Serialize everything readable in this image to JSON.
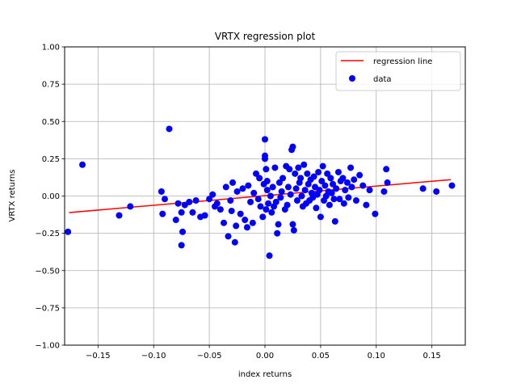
{
  "chart_data": {
    "type": "scatter",
    "title": "VRTX regression plot",
    "xlabel": "index returns",
    "ylabel": "VRTX returns",
    "xlim": [
      -0.18,
      0.18
    ],
    "ylim": [
      -1.0,
      1.0
    ],
    "x_ticks": [
      -0.15,
      -0.1,
      -0.05,
      0.0,
      0.05,
      0.1,
      0.15
    ],
    "x_tick_labels": [
      "−0.15",
      "−0.10",
      "−0.05",
      "0.00",
      "0.05",
      "0.10",
      "0.15"
    ],
    "y_ticks": [
      -1.0,
      -0.75,
      -0.5,
      -0.25,
      0.0,
      0.25,
      0.5,
      0.75,
      1.0
    ],
    "y_tick_labels": [
      "−1.00",
      "−0.75",
      "−0.50",
      "−0.25",
      "0.00",
      "0.25",
      "0.50",
      "0.75",
      "1.00"
    ],
    "grid": true,
    "legend_position": "top-right",
    "colors": {
      "regression": "#ff0000",
      "data": "#0000ff"
    },
    "series": [
      {
        "name": "regression line",
        "kind": "line",
        "points": [
          [
            -0.176,
            -0.111
          ],
          [
            0.167,
            0.11
          ]
        ]
      },
      {
        "name": "data",
        "kind": "scatter",
        "points": [
          [
            -0.177,
            -0.24
          ],
          [
            -0.164,
            0.21
          ],
          [
            -0.131,
            -0.13
          ],
          [
            -0.121,
            -0.07
          ],
          [
            -0.093,
            0.03
          ],
          [
            -0.09,
            -0.02
          ],
          [
            -0.092,
            -0.12
          ],
          [
            -0.086,
            0.45
          ],
          [
            -0.08,
            -0.16
          ],
          [
            -0.078,
            -0.05
          ],
          [
            -0.075,
            -0.11
          ],
          [
            -0.075,
            -0.33
          ],
          [
            -0.074,
            -0.24
          ],
          [
            -0.072,
            -0.06
          ],
          [
            -0.068,
            -0.04
          ],
          [
            -0.065,
            -0.11
          ],
          [
            -0.062,
            -0.03
          ],
          [
            -0.058,
            -0.14
          ],
          [
            -0.054,
            -0.13
          ],
          [
            -0.05,
            -0.02
          ],
          [
            -0.047,
            0.01
          ],
          [
            -0.045,
            -0.07
          ],
          [
            -0.043,
            -0.05
          ],
          [
            -0.04,
            -0.09
          ],
          [
            -0.037,
            -0.18
          ],
          [
            -0.035,
            0.06
          ],
          [
            -0.033,
            -0.27
          ],
          [
            -0.031,
            -0.03
          ],
          [
            -0.03,
            -0.1
          ],
          [
            -0.029,
            0.09
          ],
          [
            -0.027,
            -0.31
          ],
          [
            -0.026,
            -0.2
          ],
          [
            -0.025,
            0.03
          ],
          [
            -0.022,
            -0.12
          ],
          [
            -0.02,
            0.05
          ],
          [
            -0.018,
            -0.16
          ],
          [
            -0.016,
            -0.21
          ],
          [
            -0.015,
            0.07
          ],
          [
            -0.013,
            -0.04
          ],
          [
            -0.011,
            -0.18
          ],
          [
            -0.01,
            0.02
          ],
          [
            -0.008,
            0.15
          ],
          [
            -0.006,
            -0.02
          ],
          [
            -0.005,
            0.12
          ],
          [
            -0.004,
            -0.07
          ],
          [
            -0.002,
            -0.14
          ],
          [
            -0.001,
            0.08
          ],
          [
            0.0,
            0.38
          ],
          [
            0.0,
            0.27
          ],
          [
            0.0,
            0.25
          ],
          [
            0.001,
            0.18
          ],
          [
            0.001,
            -0.09
          ],
          [
            0.002,
            0.1
          ],
          [
            0.002,
            0.04
          ],
          [
            0.003,
            -0.05
          ],
          [
            0.004,
            -0.4
          ],
          [
            0.005,
            0.0
          ],
          [
            0.006,
            -0.11
          ],
          [
            0.007,
            0.06
          ],
          [
            0.008,
            -0.07
          ],
          [
            0.009,
            0.19
          ],
          [
            0.01,
            -0.04
          ],
          [
            0.011,
            -0.25
          ],
          [
            0.012,
            -0.19
          ],
          [
            0.013,
            0.09
          ],
          [
            0.014,
            -0.01
          ],
          [
            0.015,
            0.03
          ],
          [
            0.016,
            0.12
          ],
          [
            0.018,
            -0.09
          ],
          [
            0.019,
            0.2
          ],
          [
            0.02,
            -0.06
          ],
          [
            0.021,
            0.06
          ],
          [
            0.022,
            0.18
          ],
          [
            0.023,
            0.01
          ],
          [
            0.024,
            0.31
          ],
          [
            0.025,
            0.33
          ],
          [
            0.025,
            -0.19
          ],
          [
            0.026,
            -0.23
          ],
          [
            0.027,
            0.15
          ],
          [
            0.028,
            0.05
          ],
          [
            0.029,
            -0.03
          ],
          [
            0.03,
            0.19
          ],
          [
            0.031,
            0.09
          ],
          [
            0.032,
            0.12
          ],
          [
            0.033,
            0.0
          ],
          [
            0.034,
            -0.07
          ],
          [
            0.035,
            0.21
          ],
          [
            0.036,
            0.04
          ],
          [
            0.037,
            -0.05
          ],
          [
            0.038,
            0.15
          ],
          [
            0.039,
            0.08
          ],
          [
            0.04,
            -0.03
          ],
          [
            0.041,
            0.11
          ],
          [
            0.042,
            0.02
          ],
          [
            0.043,
            -0.01
          ],
          [
            0.044,
            0.13
          ],
          [
            0.045,
            0.06
          ],
          [
            0.046,
            -0.08
          ],
          [
            0.047,
            0.01
          ],
          [
            0.048,
            0.16
          ],
          [
            0.049,
            0.04
          ],
          [
            0.05,
            -0.14
          ],
          [
            0.051,
            0.1
          ],
          [
            0.052,
            0.2
          ],
          [
            0.053,
            -0.03
          ],
          [
            0.054,
            0.07
          ],
          [
            0.055,
            0.0
          ],
          [
            0.056,
            0.15
          ],
          [
            0.057,
            0.03
          ],
          [
            0.058,
            -0.06
          ],
          [
            0.059,
            0.12
          ],
          [
            0.06,
            0.02
          ],
          [
            0.061,
            0.08
          ],
          [
            0.062,
            -0.02
          ],
          [
            0.063,
            -0.17
          ],
          [
            0.064,
            0.05
          ],
          [
            0.066,
            0.16
          ],
          [
            0.067,
            -0.02
          ],
          [
            0.068,
            0.1
          ],
          [
            0.07,
            0.12
          ],
          [
            0.071,
            -0.05
          ],
          [
            0.072,
            0.04
          ],
          [
            0.074,
            0.09
          ],
          [
            0.075,
            -0.01
          ],
          [
            0.077,
            0.19
          ],
          [
            0.078,
            0.06
          ],
          [
            0.08,
            0.11
          ],
          [
            0.082,
            -0.03
          ],
          [
            0.085,
            0.14
          ],
          [
            0.088,
            0.07
          ],
          [
            0.091,
            -0.06
          ],
          [
            0.094,
            0.04
          ],
          [
            0.099,
            -0.12
          ],
          [
            0.107,
            0.03
          ],
          [
            0.109,
            0.18
          ],
          [
            0.11,
            0.09
          ],
          [
            0.142,
            0.05
          ],
          [
            0.154,
            0.03
          ],
          [
            0.168,
            0.07
          ]
        ]
      }
    ]
  }
}
